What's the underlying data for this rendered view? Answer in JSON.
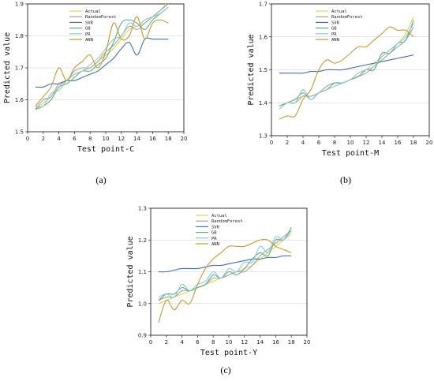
{
  "colors": {
    "Actual": "#e0d84a",
    "RandomForest": "#a6a3a0",
    "SVR": "#3f6fc2",
    "GB": "#56b77b",
    "PR": "#8ec6e6",
    "ANN": "#c79a2a"
  },
  "chart_data": [
    {
      "type": "line",
      "caption": "(a)",
      "xlabel": "Test point-C",
      "ylabel": "Predicted value",
      "xlim": [
        0,
        20
      ],
      "ylim": [
        1.5,
        1.9
      ],
      "xticks": [
        0,
        2,
        4,
        6,
        8,
        10,
        12,
        14,
        16,
        18,
        20
      ],
      "yticks": [
        1.5,
        1.6,
        1.7,
        1.8,
        1.9
      ],
      "grid": true,
      "legend": "top-left",
      "x": [
        1,
        2,
        3,
        4,
        5,
        6,
        7,
        8,
        9,
        10,
        11,
        12,
        13,
        14,
        15,
        16,
        17,
        18
      ],
      "series": [
        {
          "name": "Actual",
          "values": [
            1.57,
            1.59,
            1.61,
            1.64,
            1.66,
            1.68,
            1.69,
            1.7,
            1.72,
            1.74,
            1.76,
            1.79,
            1.82,
            1.83,
            1.84,
            1.86,
            1.88,
            1.91
          ]
        },
        {
          "name": "RandomForest",
          "values": [
            1.57,
            1.6,
            1.61,
            1.65,
            1.66,
            1.69,
            1.7,
            1.7,
            1.72,
            1.75,
            1.77,
            1.8,
            1.83,
            1.82,
            1.84,
            1.86,
            1.88,
            1.9
          ]
        },
        {
          "name": "SVR",
          "values": [
            1.64,
            1.64,
            1.65,
            1.65,
            1.66,
            1.66,
            1.67,
            1.68,
            1.69,
            1.71,
            1.73,
            1.76,
            1.78,
            1.74,
            1.79,
            1.79,
            1.79,
            1.79
          ]
        },
        {
          "name": "GB",
          "values": [
            1.57,
            1.58,
            1.6,
            1.64,
            1.65,
            1.67,
            1.69,
            1.69,
            1.71,
            1.73,
            1.78,
            1.84,
            1.85,
            1.84,
            1.82,
            1.85,
            1.87,
            1.89
          ]
        },
        {
          "name": "PR",
          "values": [
            1.58,
            1.58,
            1.62,
            1.63,
            1.66,
            1.68,
            1.69,
            1.71,
            1.73,
            1.76,
            1.79,
            1.8,
            1.84,
            1.83,
            1.85,
            1.86,
            1.87,
            1.89
          ]
        },
        {
          "name": "ANN",
          "values": [
            1.58,
            1.61,
            1.64,
            1.7,
            1.66,
            1.7,
            1.72,
            1.74,
            1.7,
            1.75,
            1.84,
            1.79,
            1.8,
            1.86,
            1.79,
            1.84,
            1.85,
            1.84
          ]
        }
      ]
    },
    {
      "type": "line",
      "caption": "(b)",
      "xlabel": "Test point-M",
      "ylabel": "Predicted value",
      "xlim": [
        0,
        20
      ],
      "ylim": [
        1.3,
        1.7
      ],
      "xticks": [
        0,
        2,
        4,
        6,
        8,
        10,
        12,
        14,
        16,
        18,
        20
      ],
      "yticks": [
        1.3,
        1.4,
        1.5,
        1.6,
        1.7
      ],
      "grid": true,
      "legend": "top-right",
      "x": [
        1,
        2,
        3,
        4,
        5,
        6,
        7,
        8,
        9,
        10,
        11,
        12,
        13,
        14,
        15,
        16,
        17,
        18
      ],
      "series": [
        {
          "name": "Actual",
          "values": [
            1.38,
            1.4,
            1.41,
            1.42,
            1.42,
            1.43,
            1.44,
            1.45,
            1.46,
            1.47,
            1.48,
            1.5,
            1.52,
            1.54,
            1.56,
            1.58,
            1.61,
            1.66
          ]
        },
        {
          "name": "RandomForest",
          "values": [
            1.39,
            1.4,
            1.4,
            1.42,
            1.42,
            1.43,
            1.45,
            1.46,
            1.46,
            1.47,
            1.48,
            1.49,
            1.51,
            1.53,
            1.55,
            1.57,
            1.59,
            1.63
          ]
        },
        {
          "name": "SVR",
          "values": [
            1.49,
            1.49,
            1.49,
            1.49,
            1.495,
            1.495,
            1.5,
            1.5,
            1.5,
            1.505,
            1.51,
            1.515,
            1.52,
            1.525,
            1.53,
            1.535,
            1.54,
            1.545
          ]
        },
        {
          "name": "GB",
          "values": [
            1.39,
            1.4,
            1.41,
            1.43,
            1.41,
            1.43,
            1.44,
            1.46,
            1.46,
            1.47,
            1.48,
            1.5,
            1.5,
            1.55,
            1.55,
            1.58,
            1.59,
            1.65
          ]
        },
        {
          "name": "PR",
          "values": [
            1.38,
            1.4,
            1.4,
            1.44,
            1.41,
            1.43,
            1.44,
            1.45,
            1.46,
            1.47,
            1.49,
            1.5,
            1.51,
            1.54,
            1.56,
            1.58,
            1.6,
            1.64
          ]
        },
        {
          "name": "ANN",
          "values": [
            1.35,
            1.36,
            1.36,
            1.41,
            1.44,
            1.5,
            1.53,
            1.52,
            1.53,
            1.55,
            1.57,
            1.57,
            1.59,
            1.61,
            1.63,
            1.62,
            1.62,
            1.6
          ]
        }
      ]
    },
    {
      "type": "line",
      "caption": "(c)",
      "xlabel": "Test point-Y",
      "ylabel": "Predicted value",
      "xlim": [
        0,
        20
      ],
      "ylim": [
        0.9,
        1.3
      ],
      "xticks": [
        0,
        2,
        4,
        6,
        8,
        10,
        12,
        14,
        16,
        18,
        20
      ],
      "yticks": [
        0.9,
        1.0,
        1.1,
        1.2,
        1.3
      ],
      "grid": true,
      "legend": "top-right",
      "x": [
        1,
        2,
        3,
        4,
        5,
        6,
        7,
        8,
        9,
        10,
        11,
        12,
        13,
        14,
        15,
        16,
        17,
        18
      ],
      "series": [
        {
          "name": "Actual",
          "values": [
            1.0,
            1.01,
            1.02,
            1.03,
            1.04,
            1.05,
            1.06,
            1.07,
            1.08,
            1.09,
            1.1,
            1.11,
            1.12,
            1.14,
            1.16,
            1.18,
            1.2,
            1.22
          ]
        },
        {
          "name": "RandomForest",
          "values": [
            1.01,
            1.02,
            1.02,
            1.04,
            1.04,
            1.05,
            1.06,
            1.08,
            1.08,
            1.09,
            1.1,
            1.1,
            1.12,
            1.15,
            1.17,
            1.19,
            1.21,
            1.23
          ]
        },
        {
          "name": "SVR",
          "values": [
            1.1,
            1.1,
            1.105,
            1.11,
            1.11,
            1.11,
            1.115,
            1.12,
            1.12,
            1.125,
            1.13,
            1.135,
            1.14,
            1.14,
            1.145,
            1.145,
            1.15,
            1.15
          ]
        },
        {
          "name": "GB",
          "values": [
            1.01,
            1.03,
            1.03,
            1.05,
            1.04,
            1.05,
            1.06,
            1.09,
            1.08,
            1.1,
            1.09,
            1.11,
            1.14,
            1.16,
            1.15,
            1.2,
            1.2,
            1.24
          ]
        },
        {
          "name": "PR",
          "values": [
            1.02,
            1.03,
            1.02,
            1.06,
            1.04,
            1.06,
            1.07,
            1.1,
            1.08,
            1.11,
            1.1,
            1.13,
            1.13,
            1.18,
            1.16,
            1.21,
            1.2,
            1.23
          ]
        },
        {
          "name": "ANN",
          "values": [
            0.94,
            1.01,
            0.98,
            1.01,
            1.0,
            1.06,
            1.11,
            1.14,
            1.16,
            1.18,
            1.18,
            1.18,
            1.19,
            1.2,
            1.2,
            1.18,
            1.17,
            1.16
          ]
        }
      ]
    }
  ]
}
